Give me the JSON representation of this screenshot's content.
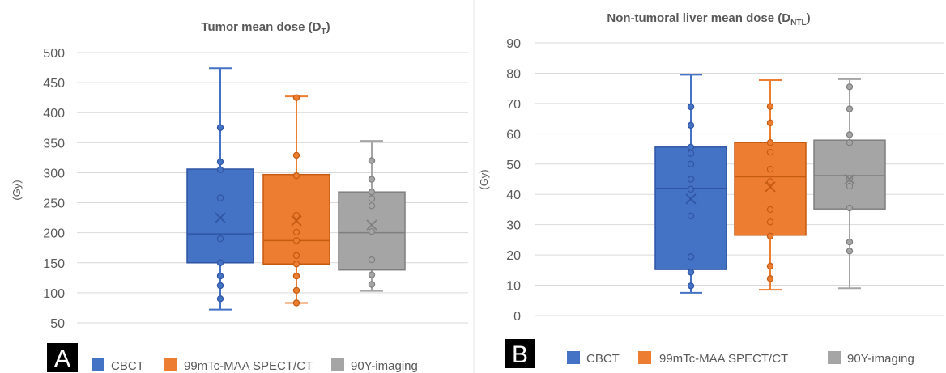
{
  "colors": {
    "CBCT": {
      "fill": "#4472c4",
      "stroke": "#2f55a4"
    },
    "99mTc-MAA SPECT/CT": {
      "fill": "#ed7d31",
      "stroke": "#c55a11"
    },
    "90Y-imaging": {
      "fill": "#a5a5a5",
      "stroke": "#7f7f7f"
    },
    "grid": "#d9d9d9"
  },
  "chart_data": [
    {
      "type": "box",
      "panel_label": "A",
      "title": "Tumor mean dose (D",
      "title_sub": "T",
      "title_end": ")",
      "ylabel": "(Gy)",
      "ylim": [
        50,
        500
      ],
      "yticks": [
        50,
        100,
        150,
        200,
        250,
        300,
        350,
        400,
        450,
        500
      ],
      "grid": true,
      "legend_position": "bottom",
      "series": [
        {
          "name": "CBCT",
          "min": 72,
          "q1": 150,
          "median": 198,
          "q3": 306,
          "max": 474,
          "mean": 225,
          "points": [
            90,
            112,
            128,
            150,
            190,
            258,
            305,
            318,
            375
          ]
        },
        {
          "name": "99mTc-MAA SPECT/CT",
          "min": 83,
          "q1": 148,
          "median": 187,
          "q3": 297,
          "max": 427,
          "mean": 220,
          "points": [
            83,
            104,
            128,
            148,
            162,
            187,
            201,
            229,
            295,
            329,
            425
          ]
        },
        {
          "name": "90Y-imaging",
          "min": 103,
          "q1": 138,
          "median": 200,
          "q3": 268,
          "max": 353,
          "mean": 213,
          "points": [
            114,
            130,
            155,
            202,
            245,
            257,
            268,
            289,
            320
          ]
        }
      ]
    },
    {
      "type": "box",
      "panel_label": "B",
      "title": "Non-tumoral liver mean dose (D",
      "title_sub": "NTL",
      "title_end": ")",
      "ylabel": "(Gy)",
      "ylim": [
        0,
        90
      ],
      "yticks": [
        0,
        10,
        20,
        30,
        40,
        50,
        60,
        70,
        80,
        90
      ],
      "grid": true,
      "legend_position": "bottom",
      "series": [
        {
          "name": "CBCT",
          "min": 7.5,
          "q1": 15.2,
          "median": 42,
          "q3": 55.6,
          "max": 79.5,
          "mean": 38.5,
          "points": [
            9.8,
            14.3,
            19.4,
            32.9,
            41.7,
            45,
            50,
            53.5,
            55.6,
            62.8,
            68.9
          ]
        },
        {
          "name": "99mTc-MAA SPECT/CT",
          "min": 8.5,
          "q1": 26.5,
          "median": 45.8,
          "q3": 57.1,
          "max": 77.7,
          "mean": 42.5,
          "points": [
            12.2,
            16.3,
            26.2,
            30.9,
            35,
            44.2,
            48.3,
            53.9,
            57.1,
            63.6,
            69
          ]
        },
        {
          "name": "90Y-imaging",
          "min": 9,
          "q1": 35.2,
          "median": 46.2,
          "q3": 57.9,
          "max": 78,
          "mean": 45,
          "points": [
            21.3,
            24.3,
            35.5,
            42.7,
            45.2,
            57.1,
            59.7,
            68.2,
            75.5
          ]
        }
      ]
    }
  ]
}
